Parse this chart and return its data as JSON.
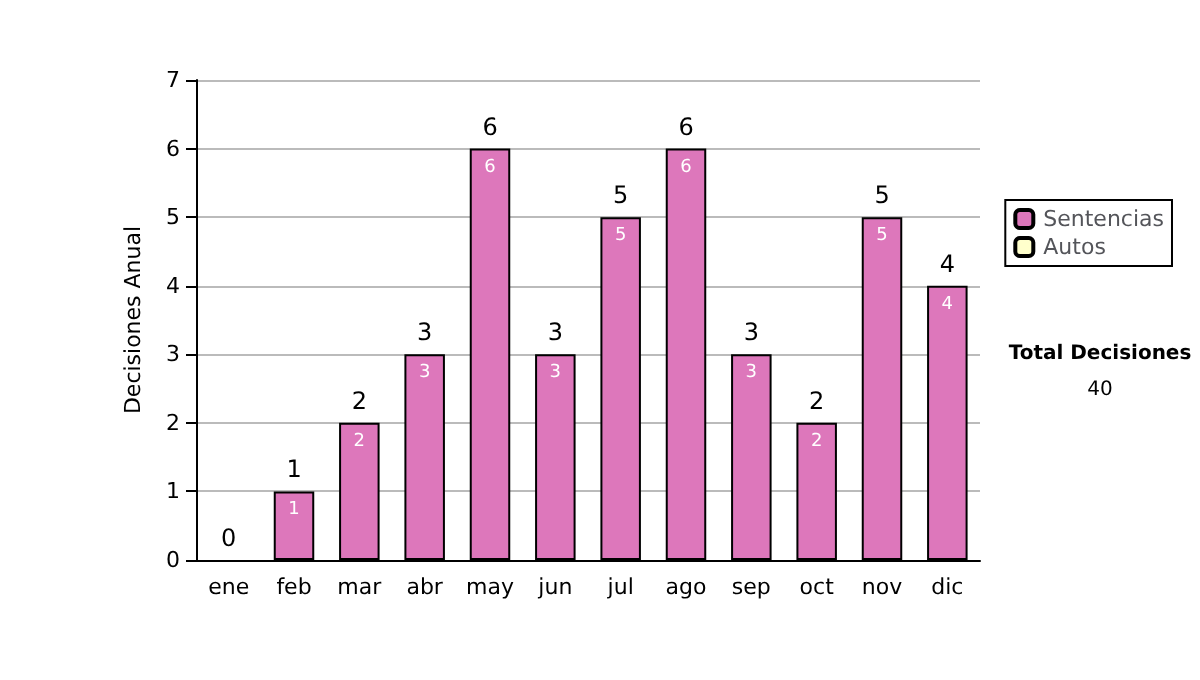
{
  "chart_data": {
    "type": "bar",
    "ylabel": "Decisiones Anual",
    "categories": [
      "ene",
      "feb",
      "mar",
      "abr",
      "may",
      "jun",
      "jul",
      "ago",
      "sep",
      "oct",
      "nov",
      "dic"
    ],
    "stacked": true,
    "series": [
      {
        "name": "Sentencias",
        "color": "#dd77bb",
        "values": [
          0,
          1,
          2,
          3,
          6,
          3,
          5,
          6,
          3,
          2,
          5,
          4
        ],
        "value_labels": [
          null,
          "1",
          "2",
          "3",
          "6",
          "3",
          "5",
          "6",
          "3",
          "2",
          "5",
          "4"
        ]
      },
      {
        "name": "Autos",
        "color": "#ffffcc",
        "values": [
          0,
          0,
          0,
          0,
          0,
          0,
          0,
          0,
          0,
          0,
          0,
          0
        ]
      }
    ],
    "totals": [
      "0",
      "1",
      "2",
      "3",
      "6",
      "3",
      "5",
      "6",
      "3",
      "2",
      "5",
      "4"
    ],
    "ylim": [
      0,
      7
    ],
    "yticks": [
      0,
      1,
      2,
      3,
      4,
      5,
      6,
      7
    ],
    "grid": "y",
    "legend": "right",
    "annotations": [
      "Total Decisiones",
      "40"
    ]
  }
}
